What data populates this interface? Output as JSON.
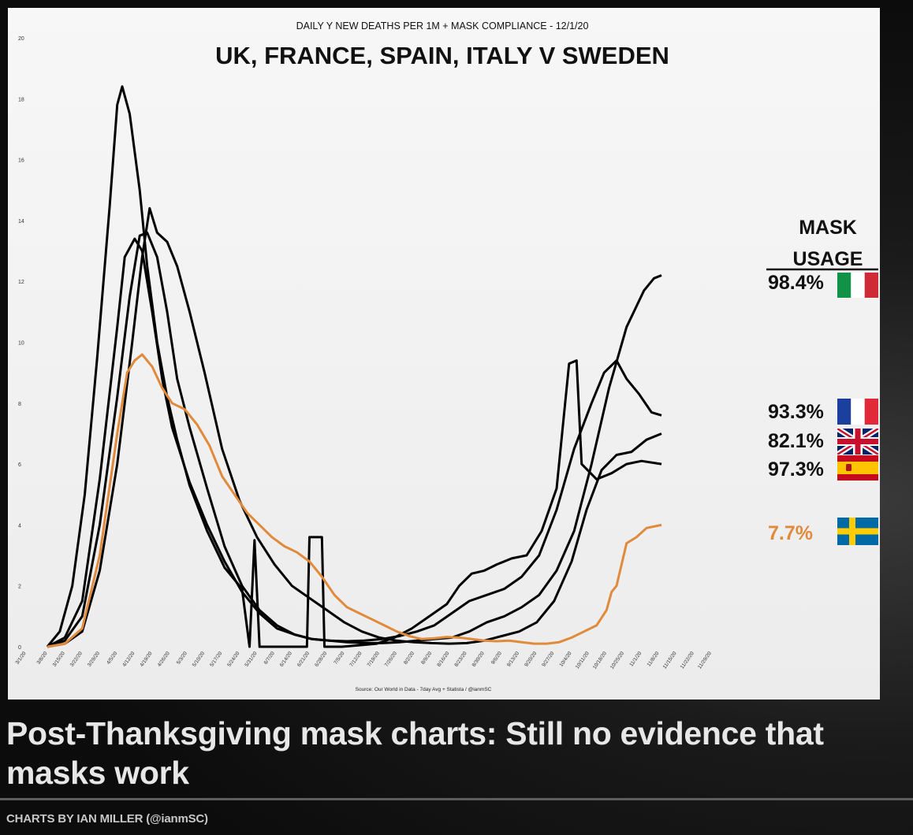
{
  "headline": "Post-Thanksgiving mask charts: Still no evidence that masks work",
  "credit": "CHARTS BY IAN MILLER (@ianmSC)",
  "chart_data": {
    "type": "line",
    "subtitle": "DAILY Y NEW DEATHS PER 1M + MASK COMPLIANCE - 12/1/20",
    "title": "UK, FRANCE, SPAIN, ITALY V SWEDEN",
    "source": "Source: Our World in Data - 7day Avg + Statista / @ianmSC",
    "legend_title": "MASK USAGE",
    "xlabel": "",
    "ylabel": "",
    "ylim": [
      0,
      20
    ],
    "yticks": [
      0,
      2,
      4,
      6,
      8,
      10,
      12,
      14,
      16,
      18,
      20
    ],
    "xticks": [
      "3/1/20",
      "3/8/20",
      "3/15/20",
      "3/22/20",
      "3/29/20",
      "4/5/20",
      "4/12/20",
      "4/19/20",
      "4/26/20",
      "5/3/20",
      "5/10/20",
      "5/17/20",
      "5/24/20",
      "5/31/20",
      "6/7/20",
      "6/14/20",
      "6/21/20",
      "6/28/20",
      "7/5/20",
      "7/12/20",
      "7/19/20",
      "7/26/20",
      "8/2/20",
      "8/9/20",
      "8/16/20",
      "8/23/20",
      "8/30/20",
      "9/6/20",
      "9/13/20",
      "9/20/20",
      "9/27/20",
      "10/4/20",
      "10/11/20",
      "10/18/20",
      "10/25/20",
      "11/1/20",
      "11/8/20",
      "11/15/20",
      "11/22/20",
      "11/29/20"
    ],
    "colors": {
      "black_series": "#000000",
      "sweden": "#e08a3c"
    },
    "series": [
      {
        "name": "Italy",
        "mask": "98.4%",
        "flag": "italy-flag",
        "color": "#000000",
        "points": [
          [
            0,
            0
          ],
          [
            7,
            0.3
          ],
          [
            14,
            1.5
          ],
          [
            21,
            5.5
          ],
          [
            28,
            10.5
          ],
          [
            31,
            12.8
          ],
          [
            35,
            13.4
          ],
          [
            38,
            13
          ],
          [
            42,
            11
          ],
          [
            46,
            8.8
          ],
          [
            50,
            7.2
          ],
          [
            57,
            5.4
          ],
          [
            64,
            4
          ],
          [
            71,
            2.8
          ],
          [
            78,
            1.8
          ],
          [
            85,
            1.1
          ],
          [
            92,
            0.6
          ],
          [
            99,
            0.4
          ],
          [
            106,
            0.25
          ],
          [
            113,
            0.2
          ],
          [
            120,
            0.15
          ],
          [
            127,
            0.12
          ],
          [
            134,
            0.12
          ],
          [
            141,
            0.15
          ],
          [
            148,
            0.2
          ],
          [
            155,
            0.25
          ],
          [
            162,
            0.3
          ],
          [
            169,
            0.5
          ],
          [
            176,
            0.8
          ],
          [
            183,
            1
          ],
          [
            190,
            1.3
          ],
          [
            197,
            1.7
          ],
          [
            204,
            2.5
          ],
          [
            211,
            3.8
          ],
          [
            218,
            6
          ],
          [
            225,
            8.5
          ],
          [
            232,
            10.5
          ],
          [
            239,
            11.7
          ],
          [
            243,
            12.1
          ],
          [
            246,
            12.2
          ]
        ]
      },
      {
        "name": "France",
        "mask": "93.3%",
        "flag": "france-flag",
        "color": "#000000",
        "points": [
          [
            0,
            0
          ],
          [
            7,
            0.2
          ],
          [
            14,
            1
          ],
          [
            21,
            4
          ],
          [
            28,
            8.2
          ],
          [
            33,
            11.5
          ],
          [
            37,
            13.5
          ],
          [
            40,
            13.6
          ],
          [
            44,
            12.8
          ],
          [
            48,
            11
          ],
          [
            52,
            8.8
          ],
          [
            57,
            7.2
          ],
          [
            64,
            5.2
          ],
          [
            71,
            3.3
          ],
          [
            78,
            2
          ],
          [
            85,
            1.2
          ],
          [
            92,
            0.7
          ],
          [
            99,
            0.4
          ],
          [
            106,
            0.25
          ],
          [
            113,
            0.2
          ],
          [
            120,
            0.18
          ],
          [
            127,
            0.2
          ],
          [
            134,
            0.25
          ],
          [
            141,
            0.35
          ],
          [
            148,
            0.5
          ],
          [
            155,
            0.7
          ],
          [
            162,
            1.1
          ],
          [
            169,
            1.5
          ],
          [
            176,
            1.7
          ],
          [
            183,
            1.9
          ],
          [
            190,
            2.3
          ],
          [
            197,
            3
          ],
          [
            204,
            4.5
          ],
          [
            211,
            6.5
          ],
          [
            218,
            8
          ],
          [
            223,
            9
          ],
          [
            228,
            9.4
          ],
          [
            232,
            8.8
          ],
          [
            237,
            8.3
          ],
          [
            242,
            7.7
          ],
          [
            246,
            7.6
          ]
        ]
      },
      {
        "name": "UK",
        "mask": "82.1%",
        "flag": "uk-flag",
        "color": "#000000",
        "points": [
          [
            0,
            0
          ],
          [
            7,
            0.1
          ],
          [
            14,
            0.5
          ],
          [
            21,
            2.5
          ],
          [
            28,
            6
          ],
          [
            34,
            10
          ],
          [
            38,
            12.8
          ],
          [
            41,
            14.4
          ],
          [
            44,
            13.6
          ],
          [
            48,
            13.3
          ],
          [
            52,
            12.5
          ],
          [
            57,
            11
          ],
          [
            63,
            9
          ],
          [
            70,
            6.5
          ],
          [
            77,
            4.8
          ],
          [
            84,
            3.6
          ],
          [
            91,
            2.7
          ],
          [
            98,
            2
          ],
          [
            105,
            1.6
          ],
          [
            112,
            1.2
          ],
          [
            119,
            0.8
          ],
          [
            126,
            0.5
          ],
          [
            133,
            0.3
          ],
          [
            140,
            0.2
          ],
          [
            147,
            0.15
          ],
          [
            154,
            0.12
          ],
          [
            161,
            0.1
          ],
          [
            168,
            0.12
          ],
          [
            175,
            0.2
          ],
          [
            182,
            0.35
          ],
          [
            189,
            0.5
          ],
          [
            196,
            0.8
          ],
          [
            203,
            1.5
          ],
          [
            210,
            2.8
          ],
          [
            216,
            4.5
          ],
          [
            222,
            5.8
          ],
          [
            228,
            6.3
          ],
          [
            234,
            6.4
          ],
          [
            240,
            6.8
          ],
          [
            246,
            7
          ]
        ]
      },
      {
        "name": "Spain",
        "mask": "97.3%",
        "flag": "spain-flag",
        "color": "#000000",
        "points": [
          [
            0,
            0
          ],
          [
            5,
            0.5
          ],
          [
            10,
            2
          ],
          [
            15,
            5
          ],
          [
            20,
            9.5
          ],
          [
            25,
            14.5
          ],
          [
            28,
            17.8
          ],
          [
            30,
            18.4
          ],
          [
            33,
            17.5
          ],
          [
            37,
            15
          ],
          [
            40,
            12.5
          ],
          [
            44,
            10
          ],
          [
            48,
            8.2
          ],
          [
            52,
            6.8
          ],
          [
            57,
            5.3
          ],
          [
            64,
            3.8
          ],
          [
            71,
            2.6
          ],
          [
            78,
            1.9
          ],
          [
            81,
            0
          ],
          [
            83,
            3.5
          ],
          [
            85,
            0
          ],
          [
            91,
            0
          ],
          [
            98,
            0
          ],
          [
            104,
            0
          ],
          [
            105,
            3.6
          ],
          [
            110,
            3.6
          ],
          [
            111,
            0
          ],
          [
            118,
            0
          ],
          [
            125,
            0.05
          ],
          [
            132,
            0.1
          ],
          [
            139,
            0.3
          ],
          [
            146,
            0.6
          ],
          [
            153,
            1
          ],
          [
            160,
            1.4
          ],
          [
            165,
            2
          ],
          [
            170,
            2.4
          ],
          [
            175,
            2.5
          ],
          [
            180,
            2.7
          ],
          [
            186,
            2.9
          ],
          [
            192,
            3
          ],
          [
            198,
            3.8
          ],
          [
            204,
            5.2
          ],
          [
            209,
            9.3
          ],
          [
            212,
            9.4
          ],
          [
            214,
            6
          ],
          [
            220,
            5.5
          ],
          [
            226,
            5.7
          ],
          [
            232,
            6
          ],
          [
            238,
            6.1
          ],
          [
            246,
            6
          ]
        ]
      },
      {
        "name": "Sweden",
        "mask": "7.7%",
        "flag": "sweden-flag",
        "color": "#e08a3c",
        "points": [
          [
            0,
            0
          ],
          [
            7,
            0.1
          ],
          [
            14,
            0.6
          ],
          [
            21,
            3
          ],
          [
            28,
            7
          ],
          [
            32,
            9
          ],
          [
            35,
            9.4
          ],
          [
            38,
            9.6
          ],
          [
            42,
            9.2
          ],
          [
            46,
            8.5
          ],
          [
            50,
            8
          ],
          [
            55,
            7.8
          ],
          [
            60,
            7.3
          ],
          [
            65,
            6.6
          ],
          [
            70,
            5.6
          ],
          [
            75,
            5
          ],
          [
            80,
            4.4
          ],
          [
            85,
            4
          ],
          [
            90,
            3.6
          ],
          [
            95,
            3.3
          ],
          [
            100,
            3.1
          ],
          [
            105,
            2.8
          ],
          [
            110,
            2.3
          ],
          [
            115,
            1.7
          ],
          [
            120,
            1.3
          ],
          [
            125,
            1.1
          ],
          [
            130,
            0.9
          ],
          [
            135,
            0.7
          ],
          [
            140,
            0.5
          ],
          [
            145,
            0.35
          ],
          [
            150,
            0.25
          ],
          [
            155,
            0.28
          ],
          [
            160,
            0.32
          ],
          [
            165,
            0.3
          ],
          [
            170,
            0.25
          ],
          [
            175,
            0.2
          ],
          [
            180,
            0.18
          ],
          [
            185,
            0.2
          ],
          [
            190,
            0.15
          ],
          [
            195,
            0.1
          ],
          [
            200,
            0.1
          ],
          [
            205,
            0.15
          ],
          [
            210,
            0.3
          ],
          [
            215,
            0.5
          ],
          [
            220,
            0.7
          ],
          [
            224,
            1.2
          ],
          [
            226,
            1.8
          ],
          [
            228,
            2
          ],
          [
            232,
            3.4
          ],
          [
            236,
            3.6
          ],
          [
            240,
            3.9
          ],
          [
            246,
            4
          ]
        ]
      }
    ]
  }
}
